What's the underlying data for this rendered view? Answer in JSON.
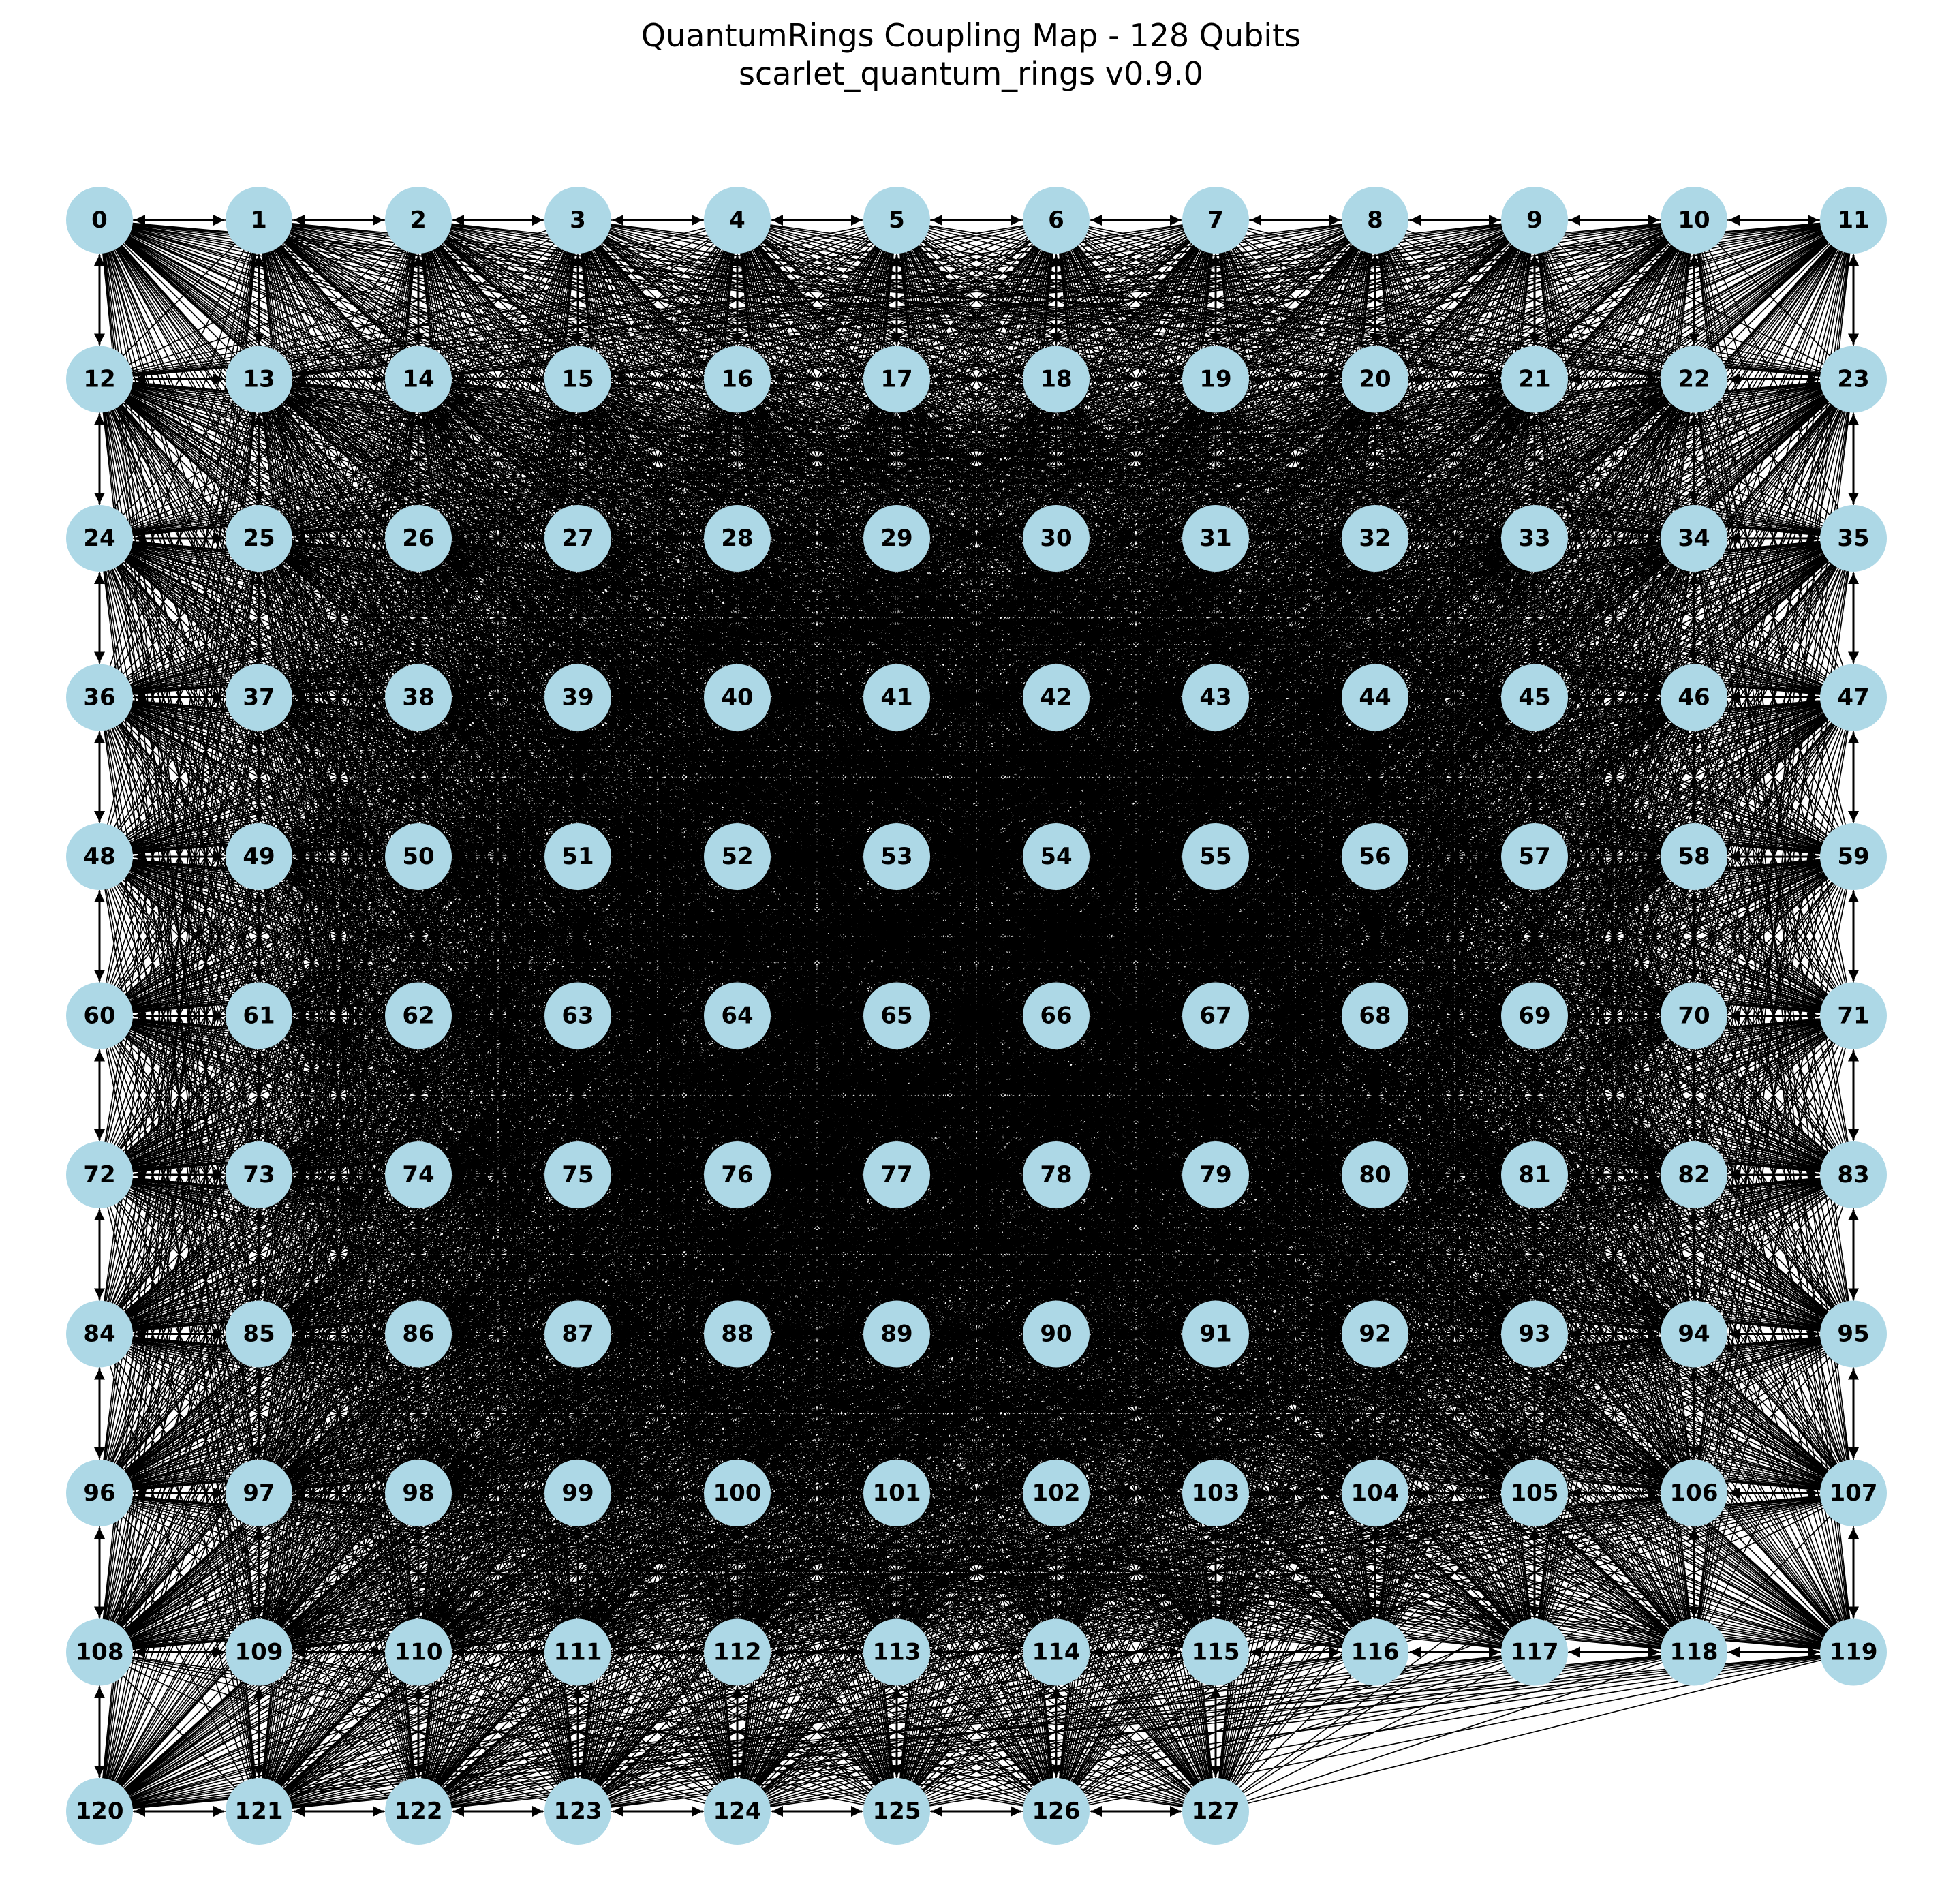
{
  "title_line1": "QuantumRings Coupling Map - 128 Qubits",
  "title_line2": "scarlet_quantum_rings v0.9.0",
  "graph": {
    "num_qubits": 128,
    "grid_columns": 12,
    "node_color": "#add8e6",
    "edge_color": "#000000",
    "coupling": "all-to-all (bidirectional)"
  }
}
